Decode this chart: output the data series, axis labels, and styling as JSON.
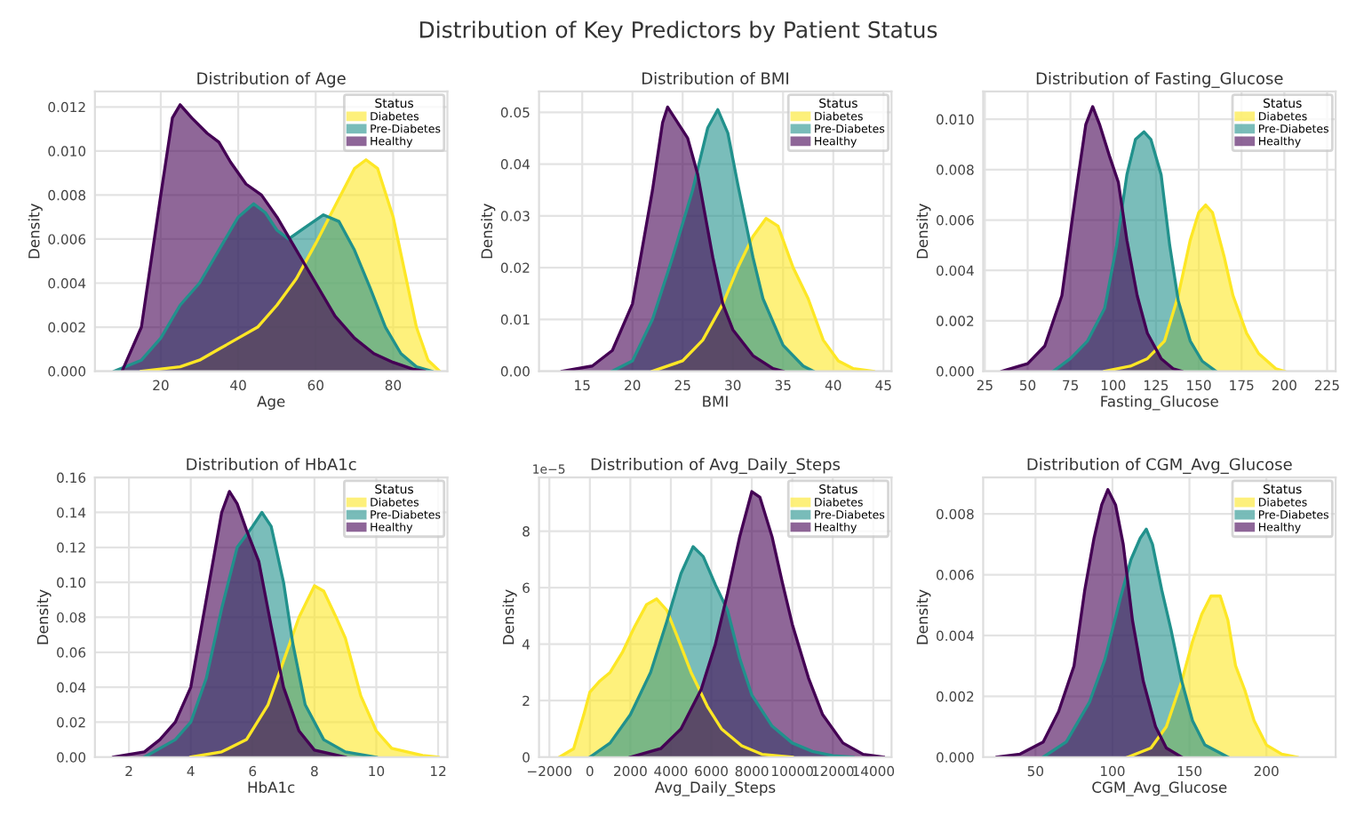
{
  "chart_data": [
    {
      "type": "area",
      "title": "Distribution of Age",
      "xlabel": "Age",
      "ylabel": "Density",
      "legend_title": "Status",
      "legend": "top right",
      "grid": true,
      "annotations": [
        "Distribution of Key Predictors by Patient Status"
      ],
      "xlim": [
        3,
        94
      ],
      "ylim": [
        0,
        0.0127
      ],
      "xticks": [
        20,
        40,
        60,
        80
      ],
      "yticks": [
        {
          "value": 0,
          "label": "0.000"
        },
        0.002,
        0.004,
        0.006,
        0.008,
        {
          "value": 0.01,
          "label": "0.010"
        },
        0.012
      ],
      "series": [
        {
          "name": "Diabetes",
          "color": "#fde725",
          "x": [
            15,
            25,
            30,
            35,
            40,
            45,
            50,
            55,
            60,
            65,
            70,
            73,
            76,
            80,
            83,
            86,
            89,
            92
          ],
          "values": [
            0,
            0.0002,
            0.0005,
            0.001,
            0.0015,
            0.002,
            0.003,
            0.0042,
            0.0058,
            0.0075,
            0.0092,
            0.0096,
            0.0092,
            0.007,
            0.0045,
            0.002,
            0.0005,
            0
          ]
        },
        {
          "name": "Pre-Diabetes",
          "color": "#21918c",
          "x": [
            8,
            15,
            20,
            25,
            30,
            35,
            40,
            44,
            47,
            50,
            53,
            57,
            62,
            66,
            70,
            74,
            78,
            82,
            86,
            90
          ],
          "values": [
            0,
            0.0005,
            0.0015,
            0.003,
            0.004,
            0.0055,
            0.007,
            0.0076,
            0.0072,
            0.0064,
            0.006,
            0.0065,
            0.0071,
            0.0068,
            0.0055,
            0.0038,
            0.002,
            0.0008,
            0.0002,
            0
          ]
        },
        {
          "name": "Healthy",
          "color": "#440154",
          "x": [
            10,
            15,
            20,
            23,
            25,
            28,
            32,
            35,
            38,
            42,
            46,
            50,
            55,
            60,
            65,
            70,
            75,
            80,
            85,
            88
          ],
          "values": [
            0,
            0.002,
            0.008,
            0.0115,
            0.0121,
            0.0115,
            0.0108,
            0.0104,
            0.0095,
            0.0085,
            0.008,
            0.007,
            0.0055,
            0.004,
            0.0025,
            0.0015,
            0.0008,
            0.0004,
            0.0001,
            0
          ]
        }
      ]
    },
    {
      "type": "area",
      "title": "Distribution of BMI",
      "xlabel": "BMI",
      "ylabel": "Density",
      "legend_title": "Status",
      "legend": "top right",
      "grid": true,
      "xlim": [
        10.7,
        45.8
      ],
      "ylim": [
        0,
        0.054
      ],
      "xticks": [
        15,
        20,
        25,
        30,
        35,
        40,
        45
      ],
      "yticks": [
        {
          "value": 0,
          "label": "0.00"
        },
        0.01,
        0.02,
        0.03,
        0.04,
        0.05
      ],
      "series": [
        {
          "name": "Diabetes",
          "color": "#fde725",
          "x": [
            22,
            25,
            27,
            29,
            30.5,
            32,
            33.3,
            34.5,
            36,
            37.5,
            39,
            40.5,
            42,
            44
          ],
          "values": [
            0,
            0.002,
            0.006,
            0.013,
            0.02,
            0.026,
            0.0295,
            0.028,
            0.02,
            0.014,
            0.006,
            0.002,
            0.0005,
            0
          ]
        },
        {
          "name": "Pre-Diabetes",
          "color": "#21918c",
          "x": [
            18,
            20,
            22,
            24,
            26,
            27.5,
            28.5,
            29.5,
            30.5,
            32,
            33,
            35,
            37,
            38
          ],
          "values": [
            0,
            0.002,
            0.01,
            0.022,
            0.035,
            0.047,
            0.0505,
            0.046,
            0.036,
            0.022,
            0.014,
            0.005,
            0.001,
            0
          ]
        },
        {
          "name": "Healthy",
          "color": "#440154",
          "x": [
            13,
            16,
            18,
            20,
            22,
            23,
            23.5,
            24.5,
            25.5,
            26.5,
            28,
            29,
            30,
            32,
            34,
            35
          ],
          "values": [
            0,
            0.001,
            0.004,
            0.013,
            0.035,
            0.048,
            0.051,
            0.048,
            0.045,
            0.038,
            0.022,
            0.013,
            0.008,
            0.003,
            0.0005,
            0
          ]
        }
      ]
    },
    {
      "type": "area",
      "title": "Distribution of Fasting_Glucose",
      "xlabel": "Fasting_Glucose",
      "ylabel": "Density",
      "legend_title": "Status",
      "legend": "top right",
      "grid": true,
      "xlim": [
        24,
        230
      ],
      "ylim": [
        0,
        0.0111
      ],
      "xticks": [
        25,
        50,
        75,
        100,
        125,
        150,
        175,
        200,
        225
      ],
      "yticks": [
        {
          "value": 0,
          "label": "0.000"
        },
        0.002,
        0.004,
        0.006,
        0.008,
        {
          "value": 0.01,
          "label": "0.010"
        }
      ],
      "series": [
        {
          "name": "Diabetes",
          "color": "#fde725",
          "x": [
            95,
            110,
            120,
            130,
            138,
            145,
            150,
            154,
            158,
            165,
            170,
            178,
            185,
            195,
            200
          ],
          "values": [
            0,
            0.0002,
            0.0005,
            0.0012,
            0.003,
            0.0052,
            0.0063,
            0.0066,
            0.0063,
            0.0045,
            0.003,
            0.0015,
            0.0007,
            0.0001,
            0
          ]
        },
        {
          "name": "Pre-Diabetes",
          "color": "#21918c",
          "x": [
            65,
            75,
            85,
            95,
            102,
            108,
            113,
            118,
            122,
            128,
            133,
            138,
            145,
            152,
            160
          ],
          "values": [
            0,
            0.0005,
            0.0012,
            0.0025,
            0.005,
            0.0078,
            0.0092,
            0.0095,
            0.0092,
            0.0078,
            0.005,
            0.0028,
            0.0012,
            0.0004,
            0
          ]
        },
        {
          "name": "Healthy",
          "color": "#440154",
          "x": [
            35,
            45,
            50,
            60,
            70,
            78,
            84,
            88,
            92,
            98,
            103,
            108,
            114,
            120,
            128,
            135,
            140
          ],
          "values": [
            0,
            0.0002,
            0.0003,
            0.001,
            0.003,
            0.007,
            0.0098,
            0.0105,
            0.0098,
            0.0085,
            0.0075,
            0.0052,
            0.003,
            0.0015,
            0.0005,
            0.0001,
            0
          ]
        }
      ]
    },
    {
      "type": "area",
      "title": "Distribution of HbA1c",
      "xlabel": "HbA1c",
      "ylabel": "Density",
      "legend_title": "Status",
      "legend": "top right",
      "grid": true,
      "xlim": [
        0.9,
        12.3
      ],
      "ylim": [
        0,
        0.16
      ],
      "xticks": [
        2,
        4,
        6,
        8,
        10,
        12
      ],
      "yticks": [
        {
          "value": 0,
          "label": "0.00"
        },
        0.02,
        0.04,
        0.06,
        0.08,
        {
          "value": 0.1,
          "label": "0.10"
        },
        0.12,
        0.14,
        0.16
      ],
      "series": [
        {
          "name": "Diabetes",
          "color": "#fde725",
          "x": [
            4,
            5,
            5.8,
            6.5,
            7,
            7.5,
            8,
            8.3,
            8.7,
            9,
            9.5,
            10,
            10.5,
            11.5,
            12
          ],
          "values": [
            0,
            0.003,
            0.01,
            0.03,
            0.055,
            0.08,
            0.098,
            0.095,
            0.08,
            0.068,
            0.035,
            0.015,
            0.005,
            0.001,
            0
          ]
        },
        {
          "name": "Pre-Diabetes",
          "color": "#21918c",
          "x": [
            2.5,
            3.5,
            4,
            4.5,
            5,
            5.5,
            6,
            6.3,
            6.6,
            7,
            7.3,
            7.7,
            8.3,
            9,
            10
          ],
          "values": [
            0,
            0.01,
            0.02,
            0.045,
            0.085,
            0.12,
            0.132,
            0.14,
            0.132,
            0.1,
            0.065,
            0.03,
            0.01,
            0.003,
            0
          ]
        },
        {
          "name": "Healthy",
          "color": "#440154",
          "x": [
            1.5,
            2.5,
            3,
            3.5,
            4,
            4.5,
            5,
            5.25,
            5.5,
            5.8,
            6.2,
            6.6,
            7,
            7.5,
            8,
            9
          ],
          "values": [
            0,
            0.003,
            0.01,
            0.02,
            0.04,
            0.09,
            0.14,
            0.152,
            0.145,
            0.13,
            0.112,
            0.075,
            0.04,
            0.015,
            0.004,
            0
          ]
        }
      ]
    },
    {
      "type": "area",
      "title": "Distribution of Avg_Daily_Steps",
      "xlabel": "Avg_Daily_Steps",
      "ylabel": "Density",
      "legend_title": "Status",
      "legend": "top right",
      "grid": true,
      "annotations": [
        "1e−5"
      ],
      "xlim": [
        -2510,
        14900
      ],
      "ylim": [
        0,
        9.9
      ],
      "xticks": [
        {
          "value": -2000,
          "label": "−2000"
        },
        0,
        2000,
        4000,
        6000,
        8000,
        10000,
        12000,
        14000
      ],
      "yticks": [
        0,
        2,
        4,
        6,
        8
      ],
      "series": [
        {
          "name": "Diabetes",
          "color": "#fde725",
          "x": [
            -1500,
            -800,
            -300,
            0,
            500,
            1000,
            1600,
            2200,
            2800,
            3300,
            3800,
            4300,
            5000,
            5800,
            6500,
            7500,
            8500,
            10000
          ],
          "values": [
            0,
            0.3,
            1.5,
            2.3,
            2.7,
            3,
            3.7,
            4.6,
            5.4,
            5.6,
            5.2,
            4.3,
            3,
            1.8,
            1,
            0.4,
            0.1,
            0
          ]
        },
        {
          "name": "Pre-Diabetes",
          "color": "#21918c",
          "x": [
            0,
            1000,
            2000,
            3000,
            3800,
            4500,
            5100,
            5600,
            6200,
            6800,
            7400,
            8000,
            9000,
            10000,
            11000,
            12000,
            13000
          ],
          "values": [
            0,
            0.5,
            1.5,
            3,
            4.8,
            6.5,
            7.45,
            7.1,
            6.1,
            5.2,
            3.5,
            2.2,
            1.1,
            0.5,
            0.2,
            0.05,
            0
          ]
        },
        {
          "name": "Healthy",
          "color": "#440154",
          "x": [
            2000,
            3500,
            4500,
            5500,
            6200,
            6800,
            7400,
            8000,
            8400,
            9000,
            9500,
            10000,
            10800,
            11500,
            12500,
            13500,
            14500
          ],
          "values": [
            0,
            0.3,
            1,
            2.4,
            4,
            5.8,
            7.8,
            9.4,
            9.2,
            7.8,
            6.2,
            4.7,
            2.8,
            1.5,
            0.5,
            0.1,
            0
          ]
        }
      ]
    },
    {
      "type": "area",
      "title": "Distribution of CGM_Avg_Glucose",
      "xlabel": "CGM_Avg_Glucose",
      "ylabel": "Density",
      "legend_title": "Status",
      "legend": "top right",
      "grid": true,
      "xlim": [
        16,
        245
      ],
      "ylim": [
        0,
        0.0092
      ],
      "xticks": [
        50,
        100,
        150,
        200
      ],
      "yticks": [
        {
          "value": 0,
          "label": "0.000"
        },
        0.002,
        0.004,
        0.006,
        0.008
      ],
      "series": [
        {
          "name": "Diabetes",
          "color": "#fde725",
          "x": [
            110,
            125,
            135,
            145,
            152,
            158,
            164,
            170,
            175,
            180,
            186,
            192,
            200,
            210,
            220
          ],
          "values": [
            0,
            0.0003,
            0.001,
            0.0025,
            0.0038,
            0.0047,
            0.0053,
            0.0053,
            0.0045,
            0.003,
            0.0022,
            0.0012,
            0.0004,
            0.0001,
            0
          ]
        },
        {
          "name": "Pre-Diabetes",
          "color": "#21918c",
          "x": [
            55,
            70,
            85,
            95,
            105,
            112,
            118,
            122,
            126,
            132,
            138,
            145,
            152,
            160,
            175
          ],
          "values": [
            0,
            0.0005,
            0.0018,
            0.0032,
            0.0052,
            0.0065,
            0.0072,
            0.0075,
            0.007,
            0.0055,
            0.0042,
            0.0025,
            0.0012,
            0.0004,
            0
          ]
        },
        {
          "name": "Healthy",
          "color": "#440154",
          "x": [
            25,
            40,
            55,
            65,
            75,
            82,
            88,
            93,
            97,
            102,
            107,
            113,
            120,
            128,
            135,
            145
          ],
          "values": [
            0,
            0.0001,
            0.0005,
            0.0015,
            0.003,
            0.0055,
            0.0072,
            0.0083,
            0.0088,
            0.0083,
            0.007,
            0.0045,
            0.0025,
            0.001,
            0.0003,
            0
          ]
        }
      ]
    }
  ]
}
